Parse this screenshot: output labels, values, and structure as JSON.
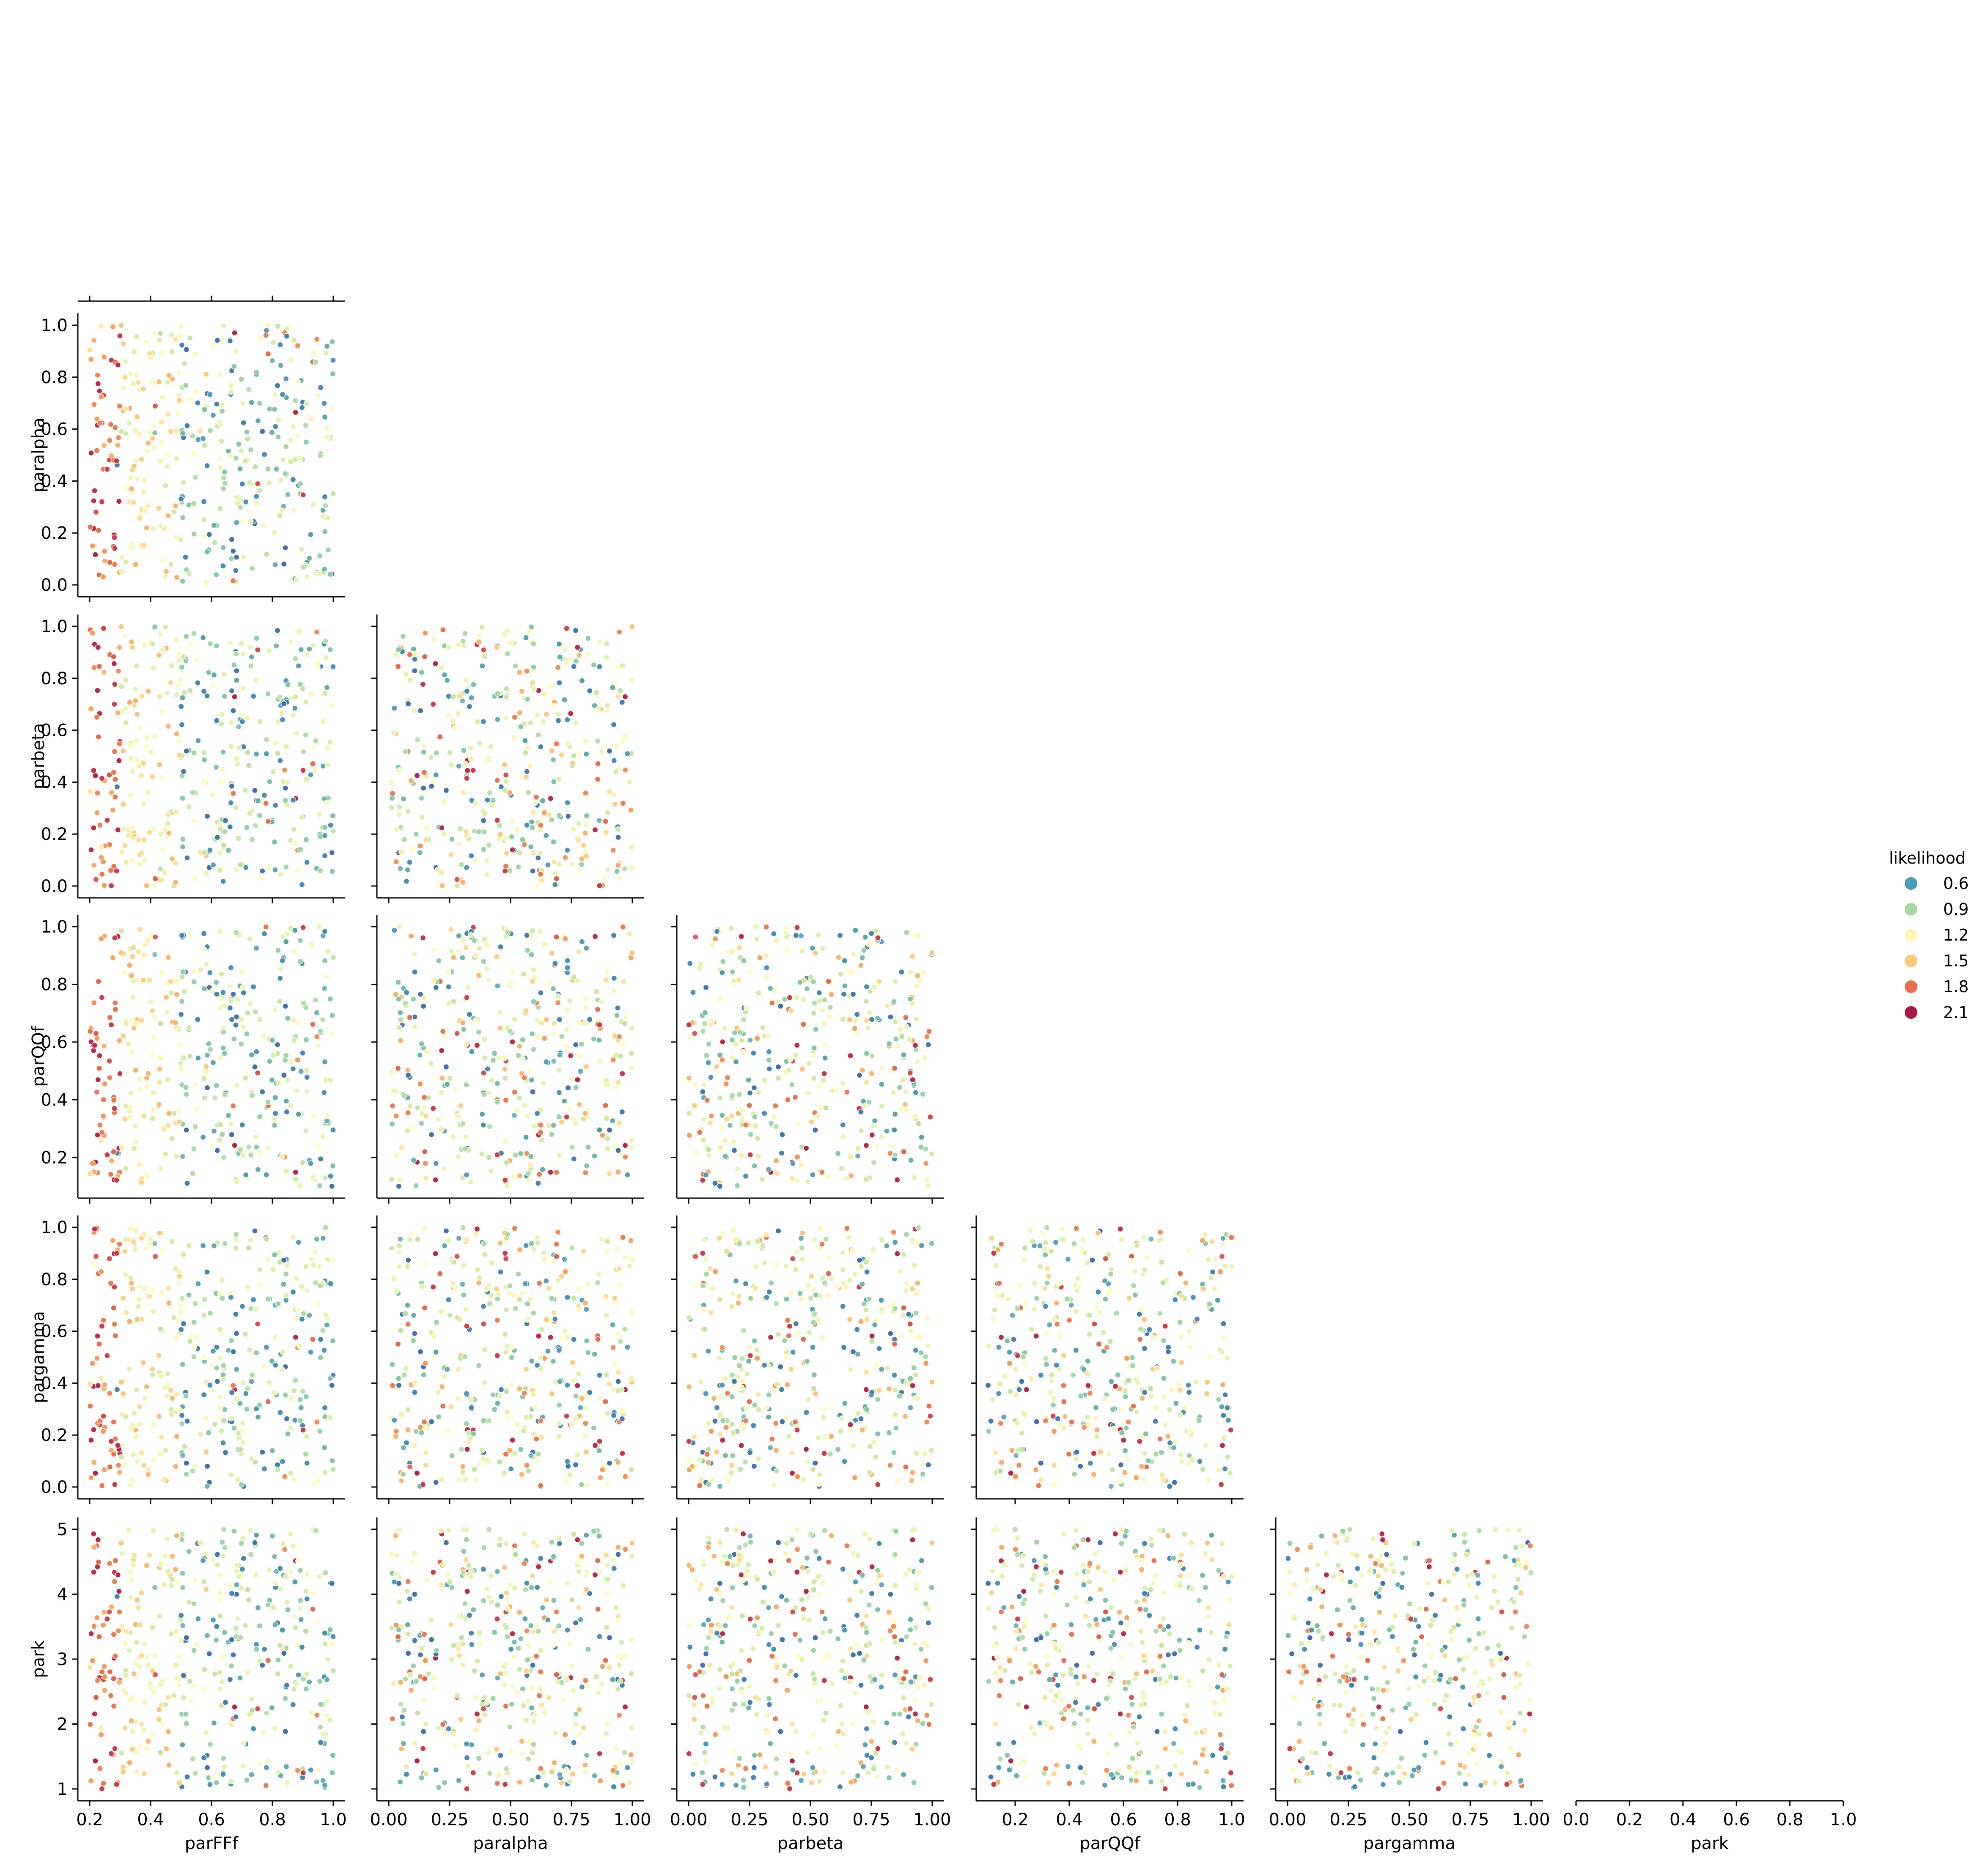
{
  "chart_data": {
    "type": "scatter",
    "kind": "pairplot-lower-corner",
    "variables": [
      "parFFf",
      "paralpha",
      "parbeta",
      "parQQf",
      "pargamma",
      "park"
    ],
    "ranges": {
      "parFFf": [
        0.2,
        1.0
      ],
      "paralpha": [
        0.0,
        1.0
      ],
      "parbeta": [
        0.0,
        1.0
      ],
      "parQQf": [
        0.1,
        1.0
      ],
      "pargamma": [
        0.0,
        1.0
      ],
      "park": [
        1.0,
        5.0
      ]
    },
    "ticks": {
      "parFFf": [
        0.2,
        0.4,
        0.6,
        0.8,
        1.0
      ],
      "paralpha": [
        0.0,
        0.2,
        0.4,
        0.6,
        0.8,
        1.0
      ],
      "parbeta": [
        0.0,
        0.2,
        0.4,
        0.6,
        0.8,
        1.0
      ],
      "parQQf": [
        0.2,
        0.4,
        0.6,
        0.8,
        1.0
      ],
      "pargamma": [
        0.0,
        0.2,
        0.4,
        0.6,
        0.8,
        1.0
      ],
      "park": [
        1,
        2,
        3,
        4,
        5
      ]
    },
    "x_ticks": {
      "parFFf": [
        0.2,
        0.4,
        0.6,
        0.8,
        1.0
      ],
      "paralpha": [
        0.0,
        0.25,
        0.5,
        0.75,
        1.0
      ],
      "parbeta": [
        0.0,
        0.25,
        0.5,
        0.75,
        1.0
      ],
      "parQQf": [
        0.2,
        0.4,
        0.6,
        0.8,
        1.0
      ],
      "pargamma": [
        0.0,
        0.25,
        0.5,
        0.75,
        1.0
      ],
      "park": [
        0.0,
        0.2,
        0.4,
        0.6,
        0.8,
        1.0
      ]
    },
    "x_tick_labels": {
      "parFFf": [
        "0.2",
        "0.4",
        "0.6",
        "0.8",
        "1.0"
      ],
      "paralpha": [
        "0.00",
        "0.25",
        "0.50",
        "0.75",
        "1.00"
      ],
      "parbeta": [
        "0.00",
        "0.25",
        "0.50",
        "0.75",
        "1.00"
      ],
      "parQQf": [
        "0.2",
        "0.4",
        "0.6",
        "0.8",
        "1.0"
      ],
      "pargamma": [
        "0.00",
        "0.25",
        "0.50",
        "0.75",
        "1.00"
      ],
      "park": [
        "0.0",
        "0.2",
        "0.4",
        "0.6",
        "0.8",
        "1.0"
      ]
    },
    "y_tick_labels": {
      "paralpha": [
        "0.0",
        "0.2",
        "0.4",
        "0.6",
        "0.8",
        "1.0"
      ],
      "parbeta": [
        "0.0",
        "0.2",
        "0.4",
        "0.6",
        "0.8",
        "1.0"
      ],
      "parQQf": [
        "0.2",
        "0.4",
        "0.6",
        "0.8",
        "1.0"
      ],
      "pargamma": [
        "0.0",
        "0.2",
        "0.4",
        "0.6",
        "0.8",
        "1.0"
      ],
      "park": [
        "1",
        "2",
        "3",
        "4",
        "5"
      ]
    },
    "hue": {
      "name": "likelihood",
      "range": [
        0.45,
        2.2
      ],
      "legend_values": [
        "0.6",
        "0.9",
        "1.2",
        "1.5",
        "1.8",
        "2.1"
      ],
      "legend_colors": [
        "#4a9bb8",
        "#a5dba3",
        "#fbf8b0",
        "#fbc779",
        "#e96c4b",
        "#a81a45"
      ],
      "colormap": [
        "#3a5ca8",
        "#4a9bb8",
        "#8dcfa6",
        "#d8efa1",
        "#fefec0",
        "#fdd987",
        "#f9a55c",
        "#e96c4b",
        "#c9304a",
        "#9b0f44"
      ]
    },
    "legend_position": "right",
    "points_per_panel": 420,
    "relationships": "likelihood is highest (red) for low parFFf near 0.2 and lowest (blue) for parFFf above about 0.5, with mid values (yellow) between; other parameters show no clear trend.",
    "grid": false
  }
}
